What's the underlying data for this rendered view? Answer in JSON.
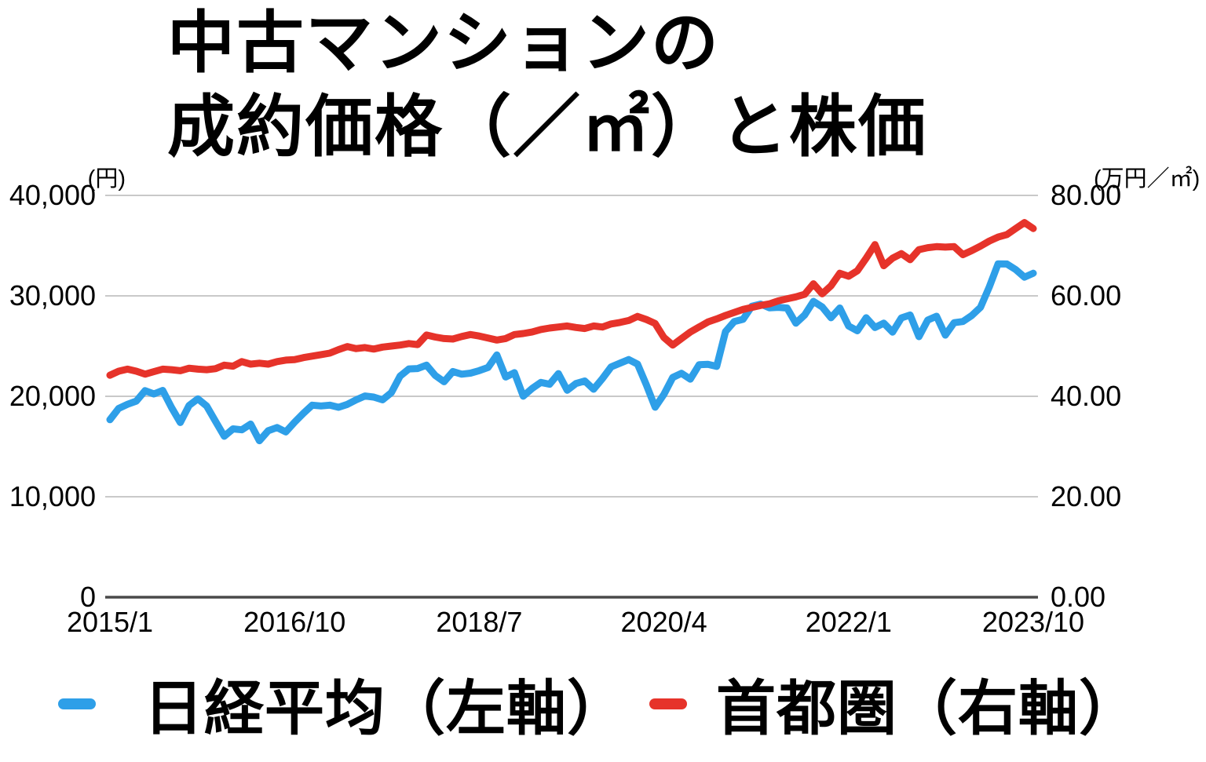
{
  "title": {
    "line1": "中古マンションの",
    "line2": "成約価格（／㎡）と株価"
  },
  "axes": {
    "left_unit": "(円)",
    "right_unit": "(万円／㎡)",
    "left_ticks": [
      "40,000",
      "30,000",
      "20,000",
      "10,000",
      "0"
    ],
    "right_ticks": [
      "80.00",
      "60.00",
      "40.00",
      "20.00",
      "0.00"
    ],
    "x_ticks": [
      {
        "label": "2015/1",
        "index": 0
      },
      {
        "label": "2016/10",
        "index": 21
      },
      {
        "label": "2018/7",
        "index": 42
      },
      {
        "label": "2020/4",
        "index": 63
      },
      {
        "label": "2022/1",
        "index": 84
      },
      {
        "label": "2023/10",
        "index": 105
      }
    ]
  },
  "legend": [
    {
      "label": "日経平均（左軸）",
      "color": "#2E9FE8"
    },
    {
      "label": "首都圏（右軸）",
      "color": "#E6332A"
    }
  ],
  "colors": {
    "nikkei_line": "#2E9FE8",
    "shutoken_line": "#E6332A",
    "gridline": "#C9C9C9",
    "axis_line": "#4A4A4A",
    "text": "#000000"
  },
  "chart_data": {
    "type": "line",
    "title": "中古マンションの成約価格（／㎡）と株価",
    "grid": "horizontal",
    "legend_position": "bottom",
    "left_axis": {
      "unit": "(円)",
      "range": [
        0,
        40000
      ],
      "ticks": [
        0,
        10000,
        20000,
        30000,
        40000
      ]
    },
    "right_axis": {
      "unit": "(万円／㎡)",
      "range": [
        0,
        80
      ],
      "ticks": [
        0.0,
        20.0,
        40.0,
        60.0,
        80.0
      ]
    },
    "x_tick_labels": [
      "2015/1",
      "2016/10",
      "2018/7",
      "2020/4",
      "2022/1",
      "2023/10"
    ],
    "x": [
      "2015/1",
      "2015/2",
      "2015/3",
      "2015/4",
      "2015/5",
      "2015/6",
      "2015/7",
      "2015/8",
      "2015/9",
      "2015/10",
      "2015/11",
      "2015/12",
      "2016/1",
      "2016/2",
      "2016/3",
      "2016/4",
      "2016/5",
      "2016/6",
      "2016/7",
      "2016/8",
      "2016/9",
      "2016/10",
      "2016/11",
      "2016/12",
      "2017/1",
      "2017/2",
      "2017/3",
      "2017/4",
      "2017/5",
      "2017/6",
      "2017/7",
      "2017/8",
      "2017/9",
      "2017/10",
      "2017/11",
      "2017/12",
      "2018/1",
      "2018/2",
      "2018/3",
      "2018/4",
      "2018/5",
      "2018/6",
      "2018/7",
      "2018/8",
      "2018/9",
      "2018/10",
      "2018/11",
      "2018/12",
      "2019/1",
      "2019/2",
      "2019/3",
      "2019/4",
      "2019/5",
      "2019/6",
      "2019/7",
      "2019/8",
      "2019/9",
      "2019/10",
      "2019/11",
      "2019/12",
      "2020/1",
      "2020/2",
      "2020/3",
      "2020/4",
      "2020/5",
      "2020/6",
      "2020/7",
      "2020/8",
      "2020/9",
      "2020/10",
      "2020/11",
      "2020/12",
      "2021/1",
      "2021/2",
      "2021/3",
      "2021/4",
      "2021/5",
      "2021/6",
      "2021/7",
      "2021/8",
      "2021/9",
      "2021/10",
      "2021/11",
      "2021/12",
      "2022/1",
      "2022/2",
      "2022/3",
      "2022/4",
      "2022/5",
      "2022/6",
      "2022/7",
      "2022/8",
      "2022/9",
      "2022/10",
      "2022/11",
      "2022/12",
      "2023/1",
      "2023/2",
      "2023/3",
      "2023/4",
      "2023/5",
      "2023/6",
      "2023/7",
      "2023/8",
      "2023/9",
      "2023/10"
    ],
    "series": [
      {
        "name": "日経平均（左軸）",
        "axis": "left",
        "color": "#2E9FE8",
        "values": [
          17674,
          18798,
          19207,
          19520,
          20563,
          20236,
          20585,
          18890,
          17388,
          19083,
          19747,
          19034,
          17518,
          16027,
          16759,
          16666,
          17235,
          15576,
          16569,
          16887,
          16450,
          17425,
          18308,
          19114,
          19041,
          19119,
          18909,
          19197,
          19651,
          20033,
          19925,
          19646,
          20356,
          22012,
          22725,
          22765,
          23098,
          22068,
          21454,
          22468,
          22202,
          22305,
          22554,
          22865,
          24120,
          21920,
          22351,
          20015,
          20773,
          21385,
          21206,
          22259,
          20601,
          21276,
          21522,
          20704,
          21756,
          22927,
          23294,
          23657,
          23205,
          21143,
          18917,
          20194,
          21878,
          22288,
          21710,
          23140,
          23185,
          22977,
          26434,
          27444,
          27663,
          28966,
          29179,
          28813,
          28860,
          28792,
          27284,
          28090,
          29453,
          28893,
          27822,
          28792,
          27002,
          26527,
          27821,
          26848,
          27280,
          26393,
          27802,
          28092,
          25937,
          27587,
          27968,
          26095,
          27327,
          27446,
          28041,
          28856,
          30888,
          33189,
          33172,
          32619,
          31858,
          32250
        ]
      },
      {
        "name": "首都圏（右軸）",
        "axis": "right",
        "color": "#E6332A",
        "values": [
          44.2,
          45.0,
          45.4,
          45.0,
          44.4,
          44.9,
          45.4,
          45.3,
          45.1,
          45.6,
          45.4,
          45.3,
          45.5,
          46.2,
          46.0,
          46.9,
          46.4,
          46.6,
          46.4,
          46.9,
          47.2,
          47.3,
          47.7,
          48.0,
          48.3,
          48.6,
          49.3,
          49.9,
          49.5,
          49.7,
          49.4,
          49.8,
          50.0,
          50.2,
          50.5,
          50.3,
          52.2,
          51.8,
          51.5,
          51.4,
          51.9,
          52.3,
          52.0,
          51.6,
          51.2,
          51.5,
          52.3,
          52.5,
          52.8,
          53.3,
          53.6,
          53.8,
          54.0,
          53.7,
          53.5,
          54.0,
          53.8,
          54.4,
          54.7,
          55.1,
          55.9,
          55.3,
          54.5,
          51.7,
          50.2,
          51.5,
          52.8,
          53.8,
          54.8,
          55.4,
          56.1,
          56.7,
          57.3,
          57.7,
          58.1,
          58.4,
          59.0,
          59.4,
          59.8,
          60.3,
          62.4,
          60.4,
          62.0,
          64.5,
          63.9,
          65.0,
          67.5,
          70.2,
          66.0,
          67.5,
          68.4,
          67.2,
          69.2,
          69.6,
          69.8,
          69.7,
          69.8,
          68.2,
          69.0,
          69.9,
          70.9,
          71.7,
          72.2,
          73.4,
          74.6,
          73.4
        ]
      }
    ]
  }
}
